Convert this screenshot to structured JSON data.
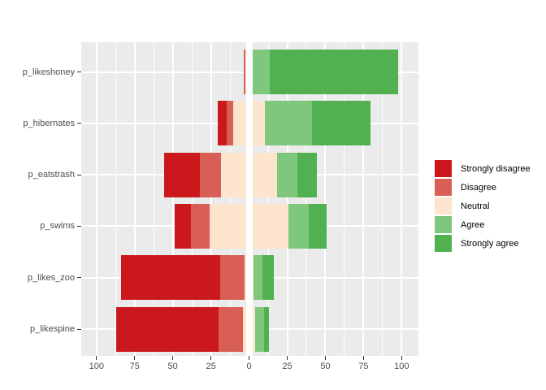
{
  "figure": {
    "panel_bg": "#ebebeb",
    "grid_color": "#ffffff",
    "axis_text_color": "#4d4d4d",
    "tick_mark_color": "#333333",
    "zero_line_color": "#ffffff"
  },
  "x_axis": {
    "tick_labels": [
      "100",
      "75",
      "50",
      "25",
      "0",
      "25",
      "50",
      "75",
      "100"
    ],
    "tick_values": [
      -100,
      -75,
      -50,
      -25,
      0,
      25,
      50,
      75,
      100
    ]
  },
  "chart_data": {
    "type": "bar",
    "variant": "diverging-stacked-likert",
    "orientation": "horizontal",
    "note": "Neutral category is centered on zero (half negative, half positive); a thick white reference line overlays x=0. Values are percentages.",
    "categories": [
      "p_likeshoney",
      "p_hibernates",
      "p_eatstrash",
      "p_swims",
      "p_likes_zoo",
      "p_likespine"
    ],
    "series": [
      {
        "name": "Strongly disagree",
        "color": "#ca181d",
        "values": [
          0,
          6,
          23,
          11,
          65,
          67
        ]
      },
      {
        "name": "Disagree",
        "color": "#d85e56",
        "values": [
          1,
          4,
          14,
          12,
          16,
          16
        ]
      },
      {
        "name": "Neutral",
        "color": "#fce4cd",
        "values": [
          5,
          21,
          37,
          52,
          6,
          8
        ]
      },
      {
        "name": "Agree",
        "color": "#7ec77d",
        "values": [
          11,
          31,
          13,
          13,
          6,
          6
        ]
      },
      {
        "name": "Strongly agree",
        "color": "#51b151",
        "values": [
          84,
          38,
          13,
          12,
          7,
          3
        ]
      }
    ],
    "xlim": [
      -110,
      111
    ],
    "x_major_ticks": [
      -100,
      -75,
      -50,
      -25,
      0,
      25,
      50,
      75,
      100
    ],
    "x_minor_ticks": [
      -87.5,
      -62.5,
      -37.5,
      -12.5,
      12.5,
      37.5,
      62.5,
      87.5
    ],
    "grid": true,
    "legend_position": "right",
    "legend_items": [
      "Strongly disagree",
      "Disagree",
      "Neutral",
      "Agree",
      "Strongly agree"
    ]
  }
}
